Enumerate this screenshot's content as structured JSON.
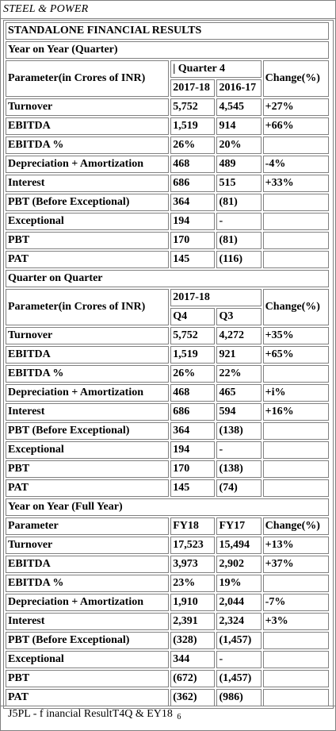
{
  "header": {
    "company": "STEEL & POWER"
  },
  "title": "STANDALONE FINANCIAL RESULTS",
  "sections": [
    {
      "heading": "Year on Year (Quarter)",
      "param_label": "Parameter(in Crores of INR)",
      "group_label": "| Quarter 4",
      "col1": "2017-18",
      "col2": "2016-17",
      "change_label": "Change(%)",
      "rows": [
        {
          "param": "Turnover",
          "v1": "5,752",
          "v2": "4,545",
          "chg": "+27%"
        },
        {
          "param": "EBITDA",
          "v1": "1,519",
          "v2": "914",
          "chg": "+66%"
        },
        {
          "param": "EBITDA %",
          "v1": "26%",
          "v2": "20%",
          "chg": ""
        },
        {
          "param": "Depreciation + Amortization",
          "v1": "468",
          "v2": "489",
          "chg": "-4%"
        },
        {
          "param": "Interest",
          "v1": "686",
          "v2": "515",
          "chg": "+33%"
        },
        {
          "param": "PBT (Before Exceptional)",
          "v1": "364",
          "v2": "(81)",
          "chg": ""
        },
        {
          "param": "Exceptional",
          "v1": "194",
          "v2": "-",
          "chg": ""
        },
        {
          "param": "PBT",
          "v1": "170",
          "v2": "(81)",
          "chg": ""
        },
        {
          "param": "PAT",
          "v1": "145",
          "v2": "(116)",
          "chg": ""
        }
      ]
    },
    {
      "heading": "Quarter on Quarter",
      "param_label": "Parameter(in Crores of INR)",
      "group_label": "2017-18",
      "col1": "Q4",
      "col2": "Q3",
      "change_label": "Change(%)",
      "rows": [
        {
          "param": "Turnover",
          "v1": "5,752",
          "v2": "4,272",
          "chg": "+35%"
        },
        {
          "param": "EBITDA",
          "v1": "1,519",
          "v2": "921",
          "chg": "+65%"
        },
        {
          "param": "EBITDA %",
          "v1": "26%",
          "v2": "22%",
          "chg": ""
        },
        {
          "param": "Depreciation + Amortization",
          "v1": "468",
          "v2": "465",
          "chg": "+i%"
        },
        {
          "param": "Interest",
          "v1": "686",
          "v2": "594",
          "chg": "+16%"
        },
        {
          "param": "PBT (Before Exceptional)",
          "v1": "364",
          "v2": "(138)",
          "chg": ""
        },
        {
          "param": "Exceptional",
          "v1": "194",
          "v2": "-",
          "chg": ""
        },
        {
          "param": "PBT",
          "v1": "170",
          "v2": "(138)",
          "chg": ""
        },
        {
          "param": "PAT",
          "v1": "145",
          "v2": "(74)",
          "chg": ""
        }
      ]
    },
    {
      "heading": "Year on Year (Full Year)",
      "param_label": "Parameter",
      "col1": "FY18",
      "col2": "FY17",
      "change_label": "Change(%)",
      "rows": [
        {
          "param": "Turnover",
          "v1": "17,523",
          "v2": "15,494",
          "chg": "+13%"
        },
        {
          "param": "EBITDA",
          "v1": "3,973",
          "v2": "2,902",
          "chg": "+37%"
        },
        {
          "param": "EBITDA %",
          "v1": "23%",
          "v2": "19%",
          "chg": ""
        },
        {
          "param": "Depreciation + Amortization",
          "v1": "1,910",
          "v2": "2,044",
          "chg": "-7%"
        },
        {
          "param": "Interest",
          "v1": "2,391",
          "v2": "2,324",
          "chg": "+3%"
        },
        {
          "param": "PBT (Before Exceptional)",
          "v1": "(328)",
          "v2": "(1,457)",
          "chg": ""
        },
        {
          "param": "Exceptional",
          "v1": "344",
          "v2": "-",
          "chg": ""
        },
        {
          "param": "PBT",
          "v1": "(672)",
          "v2": "(1,457)",
          "chg": ""
        },
        {
          "param": "PAT",
          "v1": "(362)",
          "v2": "(986)",
          "chg": ""
        }
      ]
    }
  ],
  "footer": {
    "text": "J5PL - f inancial ResultT4Q & EY18",
    "page": "6"
  }
}
